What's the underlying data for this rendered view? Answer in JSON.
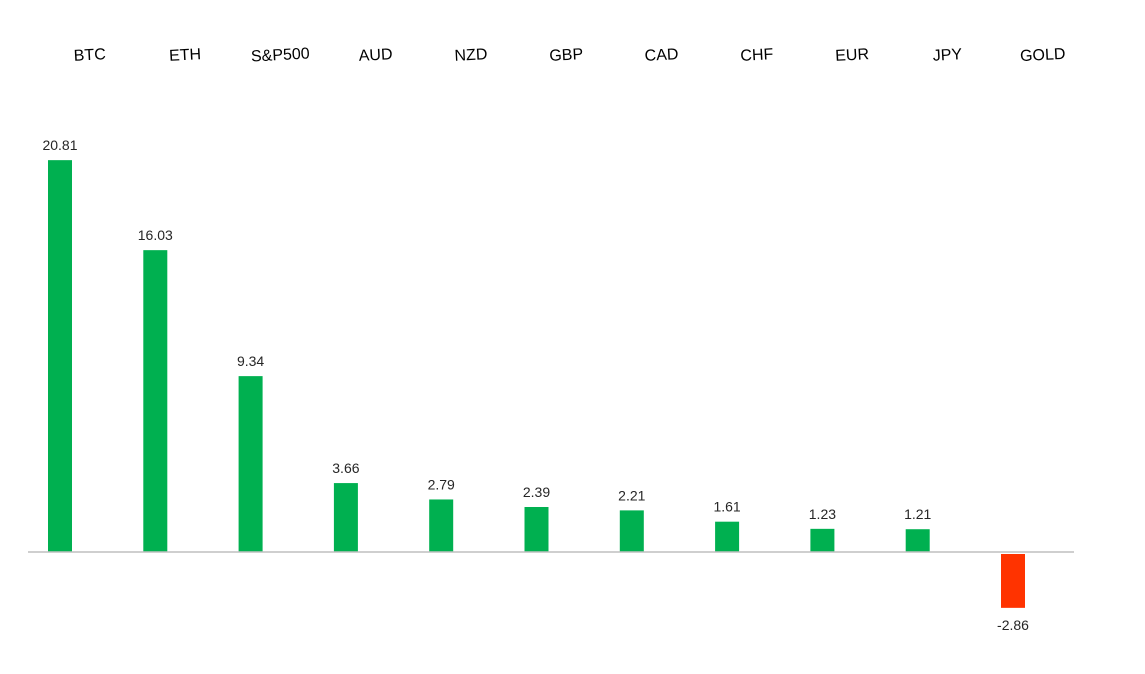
{
  "chart_data": {
    "type": "bar",
    "title": "",
    "xlabel": "",
    "ylabel": "",
    "categories": [
      "BTC",
      "ETH",
      "S&P500",
      "AUD",
      "NZD",
      "GBP",
      "CAD",
      "CHF",
      "EUR",
      "JPY",
      "GOLD"
    ],
    "values": [
      20.81,
      16.03,
      9.34,
      3.66,
      2.79,
      2.39,
      2.21,
      1.61,
      1.23,
      1.21,
      -2.86
    ],
    "value_labels": [
      "20.81",
      "16.03",
      "9.34",
      "3.66",
      "2.79",
      "2.39",
      "2.21",
      "1.61",
      "1.23",
      "1.21",
      "-2.86"
    ],
    "ylim": [
      -2.86,
      20.81
    ],
    "grid": false,
    "legend": "none",
    "category_label_position": "top"
  },
  "colors": {
    "positive": "#00b050",
    "negative": "#ff3300",
    "axis": "#bfbfbf",
    "background": "#ffffff"
  }
}
